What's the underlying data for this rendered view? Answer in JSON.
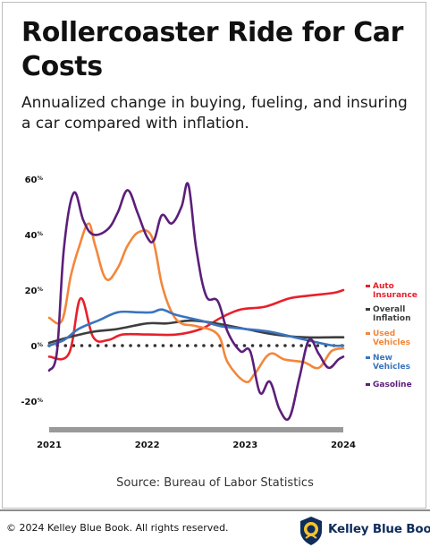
{
  "header": {
    "title": "Rollercoaster Ride for Car Costs",
    "subtitle": "Annualized change in buying, fueling, and insuring a car compared with inflation."
  },
  "source": "Source: Bureau of Labor Statistics",
  "footer": {
    "copyright": "© 2024 Kelley Blue Book. All rights reserved.",
    "brand": "Kelley Blue Book"
  },
  "colors": {
    "auto_insurance": "#e8202a",
    "overall_inflation": "#3d3d3d",
    "used_vehicles": "#f4863a",
    "new_vehicles": "#3a74bf",
    "gasoline": "#5b1f7a",
    "brand": "#0e2c5c"
  },
  "chart_data": {
    "type": "line",
    "y_tick_labels": [
      "60%",
      "40%",
      "20%",
      "0%",
      "-20%"
    ],
    "y_ticks": [
      60,
      40,
      20,
      0,
      -20
    ],
    "ylim": [
      -30,
      60
    ],
    "xlim": [
      2021,
      2024
    ],
    "x_tick_labels": [
      "2021",
      "2022",
      "2023",
      "2024"
    ],
    "x_ticks": [
      2021,
      2022,
      2023,
      2024
    ],
    "zero_line": "dotted",
    "legend_position": "right",
    "series": [
      {
        "name": "Auto Insurance",
        "color_key": "auto_insurance",
        "points": [
          [
            2021.0,
            -4
          ],
          [
            2021.2,
            -3
          ],
          [
            2021.32,
            17
          ],
          [
            2021.45,
            3
          ],
          [
            2021.6,
            2
          ],
          [
            2021.75,
            4
          ],
          [
            2022.0,
            4
          ],
          [
            2022.3,
            4
          ],
          [
            2022.55,
            6
          ],
          [
            2022.75,
            10
          ],
          [
            2022.95,
            13
          ],
          [
            2023.2,
            14
          ],
          [
            2023.45,
            17
          ],
          [
            2023.65,
            18
          ],
          [
            2023.9,
            19
          ],
          [
            2024.0,
            20
          ]
        ]
      },
      {
        "name": "Overall Inflation",
        "color_key": "overall_inflation",
        "points": [
          [
            2021.0,
            1
          ],
          [
            2021.2,
            3
          ],
          [
            2021.45,
            5
          ],
          [
            2021.7,
            6
          ],
          [
            2022.0,
            8
          ],
          [
            2022.2,
            8
          ],
          [
            2022.45,
            9
          ],
          [
            2022.7,
            8
          ],
          [
            2023.0,
            6
          ],
          [
            2023.3,
            4
          ],
          [
            2023.6,
            3
          ],
          [
            2023.9,
            3
          ],
          [
            2024.0,
            3
          ]
        ]
      },
      {
        "name": "Used Vehicles",
        "color_key": "used_vehicles",
        "points": [
          [
            2021.0,
            10
          ],
          [
            2021.13,
            9
          ],
          [
            2021.22,
            25
          ],
          [
            2021.3,
            35
          ],
          [
            2021.4,
            44
          ],
          [
            2021.47,
            36
          ],
          [
            2021.58,
            24
          ],
          [
            2021.7,
            28
          ],
          [
            2021.8,
            36
          ],
          [
            2021.92,
            41
          ],
          [
            2022.05,
            39
          ],
          [
            2022.15,
            22
          ],
          [
            2022.25,
            12
          ],
          [
            2022.35,
            8
          ],
          [
            2022.5,
            7
          ],
          [
            2022.72,
            4
          ],
          [
            2022.82,
            -6
          ],
          [
            2023.0,
            -13
          ],
          [
            2023.1,
            -10
          ],
          [
            2023.25,
            -3
          ],
          [
            2023.4,
            -5
          ],
          [
            2023.6,
            -6
          ],
          [
            2023.75,
            -8
          ],
          [
            2023.88,
            -2
          ],
          [
            2024.0,
            -1
          ]
        ]
      },
      {
        "name": "New Vehicles",
        "color_key": "new_vehicles",
        "points": [
          [
            2021.0,
            0
          ],
          [
            2021.15,
            2
          ],
          [
            2021.3,
            6
          ],
          [
            2021.5,
            9
          ],
          [
            2021.7,
            12
          ],
          [
            2021.9,
            12
          ],
          [
            2022.05,
            12
          ],
          [
            2022.15,
            13
          ],
          [
            2022.3,
            11
          ],
          [
            2022.55,
            9
          ],
          [
            2022.75,
            7
          ],
          [
            2023.0,
            6
          ],
          [
            2023.25,
            5
          ],
          [
            2023.5,
            3
          ],
          [
            2023.75,
            1
          ],
          [
            2023.9,
            0
          ],
          [
            2024.0,
            0
          ]
        ]
      },
      {
        "name": "Gasoline",
        "color_key": "gasoline",
        "points": [
          [
            2021.0,
            -9
          ],
          [
            2021.08,
            -2
          ],
          [
            2021.15,
            35
          ],
          [
            2021.25,
            55
          ],
          [
            2021.35,
            45
          ],
          [
            2021.45,
            40
          ],
          [
            2021.6,
            42
          ],
          [
            2021.7,
            48
          ],
          [
            2021.8,
            56
          ],
          [
            2021.9,
            48
          ],
          [
            2022.0,
            39
          ],
          [
            2022.07,
            38
          ],
          [
            2022.15,
            47
          ],
          [
            2022.25,
            44
          ],
          [
            2022.35,
            50
          ],
          [
            2022.42,
            58
          ],
          [
            2022.5,
            35
          ],
          [
            2022.6,
            18
          ],
          [
            2022.72,
            16
          ],
          [
            2022.82,
            5
          ],
          [
            2022.95,
            -2
          ],
          [
            2023.05,
            -2
          ],
          [
            2023.15,
            -17
          ],
          [
            2023.25,
            -13
          ],
          [
            2023.35,
            -23
          ],
          [
            2023.45,
            -26
          ],
          [
            2023.55,
            -12
          ],
          [
            2023.65,
            2
          ],
          [
            2023.75,
            -3
          ],
          [
            2023.85,
            -8
          ],
          [
            2023.95,
            -5
          ],
          [
            2024.0,
            -4
          ]
        ]
      }
    ]
  }
}
